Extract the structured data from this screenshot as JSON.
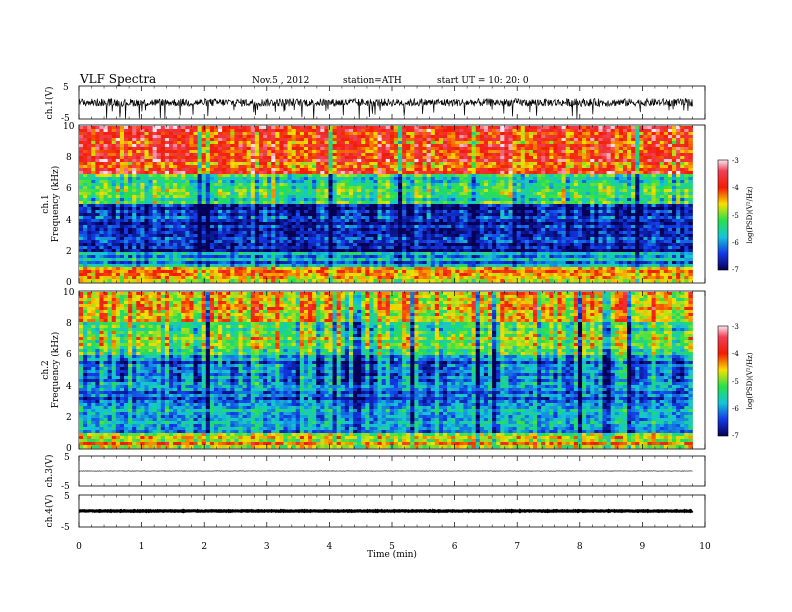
{
  "header": {
    "title": "VLF  Spectra",
    "date": "Nov.5   , 2012",
    "station": "station=ATH",
    "start_ut": "start  UT  =   10: 20: 0"
  },
  "chart_data": [
    {
      "id": "ch1-waveform",
      "type": "line",
      "ylabel": "ch.1(V)",
      "yticks": [
        "5",
        "-5"
      ],
      "ylim": [
        -5,
        5
      ],
      "xlim": [
        0,
        10
      ],
      "data_until_min": 9.8,
      "signal": "noisy waveform with frequent negative spikes (sferics)"
    },
    {
      "id": "ch1-spectrogram",
      "type": "heatmap",
      "ylabel": "ch.1\nFrequency  (kHz)",
      "ylabel_lines": [
        "ch.1",
        "Frequency  (kHz)"
      ],
      "yticks": [
        "10",
        "8",
        "6",
        "4",
        "2",
        "0"
      ],
      "ylim": [
        0,
        10
      ],
      "xlim": [
        0,
        10
      ],
      "colorbar": {
        "label": "log(PSD)(V²/Hz)",
        "ticks": [
          "-3",
          "-4",
          "-5",
          "-6",
          "-7"
        ],
        "range": [
          -7,
          -3
        ]
      },
      "description_bands": [
        {
          "from_khz": 0,
          "to_khz": 1,
          "level": -4.5
        },
        {
          "from_khz": 1,
          "to_khz": 2,
          "level": -6.0
        },
        {
          "from_khz": 2,
          "to_khz": 5,
          "level": -6.5
        },
        {
          "from_khz": 5,
          "to_khz": 7,
          "level": -5.2
        },
        {
          "from_khz": 7,
          "to_khz": 10,
          "level": -4.0
        }
      ]
    },
    {
      "id": "ch2-spectrogram",
      "type": "heatmap",
      "ylabel_lines": [
        "ch.2",
        "Frequency  (kHz)"
      ],
      "yticks": [
        "10",
        "8",
        "6",
        "4",
        "2",
        "0"
      ],
      "ylim": [
        0,
        10
      ],
      "xlim": [
        0,
        10
      ],
      "colorbar": {
        "label": "log(PSD)(V²/Hz)",
        "ticks": [
          "-3",
          "-4",
          "-5",
          "-6",
          "-7"
        ],
        "range": [
          -7,
          -3
        ]
      },
      "description_bands": [
        {
          "from_khz": 0,
          "to_khz": 1,
          "level": -4.5
        },
        {
          "from_khz": 1,
          "to_khz": 3,
          "level": -5.8
        },
        {
          "from_khz": 3,
          "to_khz": 6,
          "level": -6.2
        },
        {
          "from_khz": 6,
          "to_khz": 8,
          "level": -5.0
        },
        {
          "from_khz": 8,
          "to_khz": 10,
          "level": -4.6
        }
      ]
    },
    {
      "id": "ch3-waveform",
      "type": "line",
      "ylabel": "ch.3(V)",
      "yticks": [
        "5",
        "-5"
      ],
      "ylim": [
        -5,
        5
      ],
      "xlim": [
        0,
        10
      ],
      "data_until_min": 9.8,
      "signal": "flat line near 0 V"
    },
    {
      "id": "ch4-waveform",
      "type": "line",
      "ylabel": "ch.4(V)",
      "yticks": [
        "5",
        "-5"
      ],
      "ylim": [
        -5,
        5
      ],
      "xlim": [
        0,
        10
      ],
      "data_until_min": 9.8,
      "signal": "thick flat line near 0 V"
    }
  ],
  "x_axis": {
    "label": "Time  (min)",
    "ticks": [
      "0",
      "1",
      "2",
      "3",
      "4",
      "5",
      "6",
      "7",
      "8",
      "9",
      "10"
    ],
    "range": [
      0,
      10
    ]
  }
}
